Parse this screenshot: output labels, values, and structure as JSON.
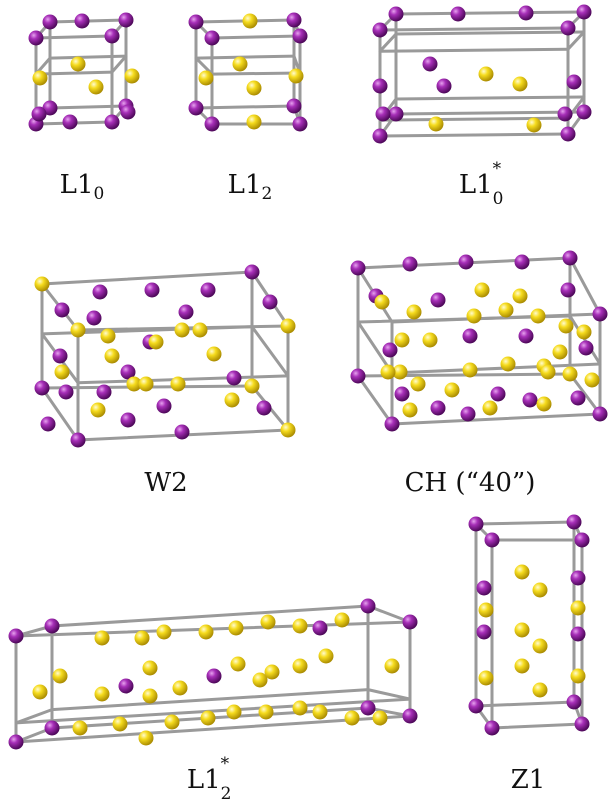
{
  "colors": {
    "purple": "#8f1ba0",
    "yellow": "#f7d91c",
    "bond": "#9a9a9a"
  },
  "labels": {
    "l10_base": "L1",
    "l10_sub": "0",
    "l12_base": "L1",
    "l12_sub": "2",
    "l10s_base": "L1",
    "l10s_sub": "0",
    "l10s_sup": "*",
    "w2": "W2",
    "ch": "CH (“40”)",
    "l12s_base": "L1",
    "l12s_sub": "2",
    "l12s_sup": "*",
    "z1": "Z1"
  }
}
